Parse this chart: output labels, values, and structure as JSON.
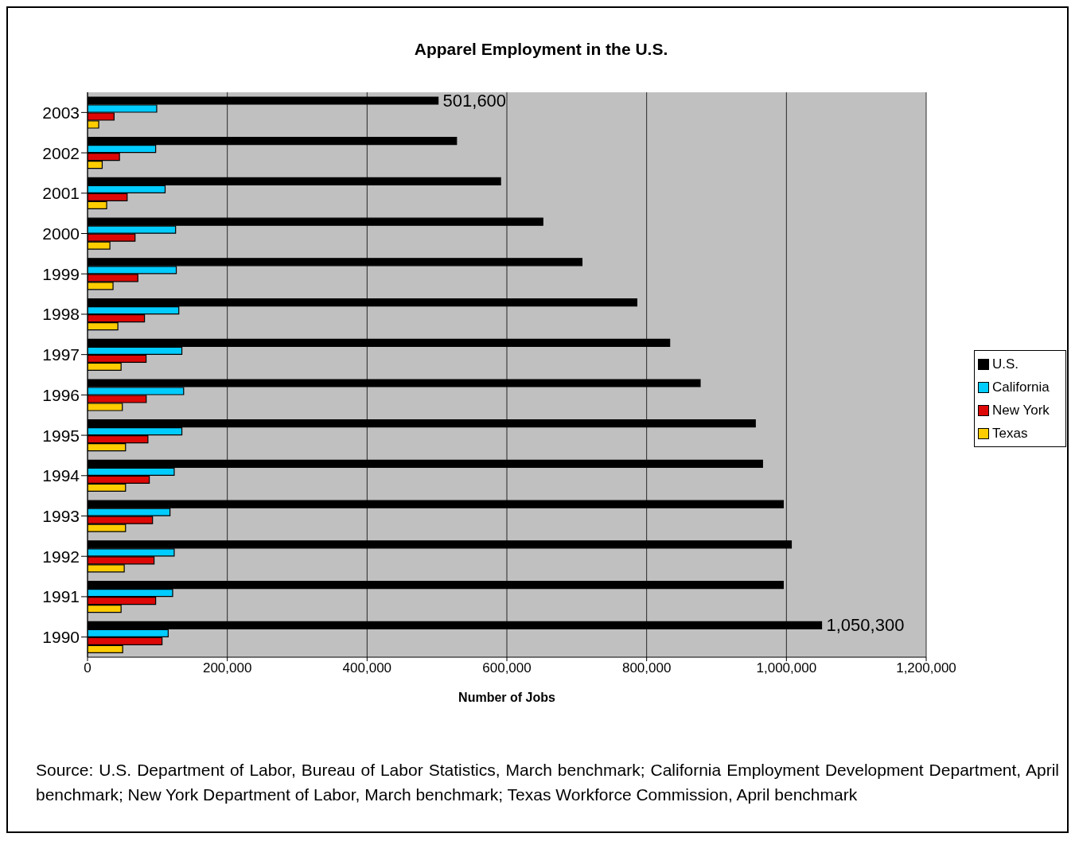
{
  "chart_data": {
    "type": "bar",
    "orientation": "horizontal",
    "title": "Apparel Employment in the U.S.",
    "xlabel": "Number of Jobs",
    "categories": [
      "2003",
      "2002",
      "2001",
      "2000",
      "1999",
      "1998",
      "1997",
      "1996",
      "1995",
      "1994",
      "1993",
      "1992",
      "1991",
      "1990"
    ],
    "series": [
      {
        "name": "U.S.",
        "color": "#000000",
        "values": [
          501600,
          528000,
          591000,
          651500,
          707500,
          786000,
          833000,
          876600,
          955500,
          965800,
          995500,
          1007000,
          995500,
          1050300
        ],
        "value_labels": [
          "501,600",
          null,
          null,
          null,
          null,
          null,
          null,
          null,
          null,
          null,
          null,
          null,
          null,
          "1,050,300"
        ]
      },
      {
        "name": "California",
        "color": "#00ccff",
        "values": [
          99000,
          97500,
          111000,
          126000,
          127000,
          130600,
          135000,
          137500,
          135000,
          124000,
          118000,
          124000,
          121800,
          115400
        ]
      },
      {
        "name": "New York",
        "color": "#dd0806",
        "values": [
          38000,
          45700,
          56700,
          68000,
          72000,
          81500,
          83800,
          84000,
          86400,
          88400,
          93000,
          95200,
          97500,
          106600
        ]
      },
      {
        "name": "Texas",
        "color": "#ffcc00",
        "values": [
          16000,
          21000,
          27400,
          32000,
          36500,
          43400,
          48000,
          49800,
          54400,
          54400,
          54400,
          52500,
          48000,
          50300
        ]
      }
    ],
    "xlim": [
      0,
      1200000
    ],
    "xticks": [
      0,
      {
        "value": 200000,
        "label": "200,000"
      },
      {
        "value": 400000,
        "label": "400,000"
      },
      {
        "value": 600000,
        "label": "600,000"
      },
      {
        "value": 800000,
        "label": "800,000"
      },
      {
        "value": 1000000,
        "label": "1,000,000"
      },
      {
        "value": 1200000,
        "label": "1,200,000"
      }
    ],
    "grid": "x",
    "legend": "right",
    "annotations": [
      "Source: U.S. Department of Labor, Bureau of Labor Statistics, March benchmark; California Employment Development Department, April benchmark; New York Department of Labor, March benchmark; Texas Workforce Commission, April benchmark"
    ]
  }
}
